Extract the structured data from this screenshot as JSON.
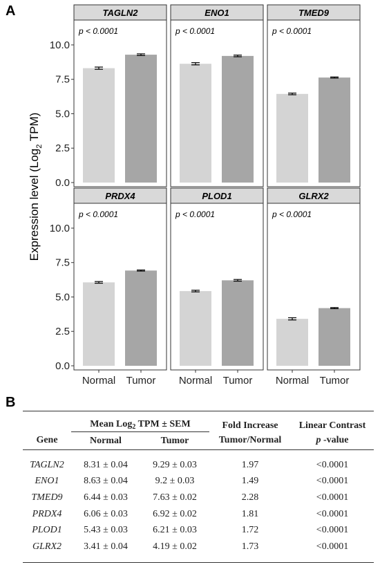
{
  "panel_a_label": "A",
  "panel_b_label": "B",
  "chart_data": {
    "type": "bar",
    "layout": "faceted 2x3",
    "ylabel": "Expression level (Log",
    "ylabel_sub": "2",
    "ylabel_end": " TPM)",
    "ylim": [
      0,
      10.5
    ],
    "yticks": [
      "0.0",
      "2.5",
      "5.0",
      "7.5",
      "10.0"
    ],
    "categories": [
      "Normal",
      "Tumor"
    ],
    "colors": {
      "Normal": "#d4d4d4",
      "Tumor": "#a6a6a6",
      "strip": "#d9d9d9",
      "errorbar": "#000000"
    },
    "facets": [
      {
        "gene": "TAGLN2",
        "pval": "p < 0.0001",
        "values": [
          8.31,
          9.29
        ],
        "sem": [
          0.04,
          0.03
        ]
      },
      {
        "gene": "ENO1",
        "pval": "p < 0.0001",
        "values": [
          8.63,
          9.2
        ],
        "sem": [
          0.04,
          0.03
        ]
      },
      {
        "gene": "TMED9",
        "pval": "p < 0.0001",
        "values": [
          6.44,
          7.63
        ],
        "sem": [
          0.03,
          0.02
        ]
      },
      {
        "gene": "PRDX4",
        "pval": "p < 0.0001",
        "values": [
          6.06,
          6.92
        ],
        "sem": [
          0.03,
          0.02
        ]
      },
      {
        "gene": "PLOD1",
        "pval": "p < 0.0001",
        "values": [
          5.43,
          6.21
        ],
        "sem": [
          0.03,
          0.03
        ]
      },
      {
        "gene": "GLRX2",
        "pval": "p < 0.0001",
        "values": [
          3.41,
          4.19
        ],
        "sem": [
          0.04,
          0.02
        ]
      }
    ]
  },
  "table": {
    "header_mean_pre": "Mean Log",
    "header_mean_sub": "2",
    "header_mean_post": " TPM ± SEM",
    "header_fold": "Fold Increase",
    "header_contrast": "Linear Contrast",
    "header_gene": "Gene",
    "header_normal": "Normal",
    "header_tumor": "Tumor",
    "header_tumor_normal": "Tumor/Normal",
    "header_p": "p",
    "header_p_suffix": " -value",
    "rows": [
      {
        "gene": "TAGLN2",
        "normal": "8.31 ± 0.04",
        "tumor": "9.29 ± 0.03",
        "fold": "1.97",
        "p": "<0.0001"
      },
      {
        "gene": "ENO1",
        "normal": "8.63 ± 0.04",
        "tumor": "9.2 ± 0.03",
        "fold": "1.49",
        "p": "<0.0001"
      },
      {
        "gene": "TMED9",
        "normal": "6.44 ± 0.03",
        "tumor": "7.63 ± 0.02",
        "fold": "2.28",
        "p": "<0.0001"
      },
      {
        "gene": "PRDX4",
        "normal": "6.06 ± 0.03",
        "tumor": "6.92 ± 0.02",
        "fold": "1.81",
        "p": "<0.0001"
      },
      {
        "gene": "PLOD1",
        "normal": "5.43 ± 0.03",
        "tumor": "6.21 ± 0.03",
        "fold": "1.72",
        "p": "<0.0001"
      },
      {
        "gene": "GLRX2",
        "normal": "3.41 ± 0.04",
        "tumor": "4.19 ± 0.02",
        "fold": "1.73",
        "p": "<0.0001"
      }
    ]
  }
}
